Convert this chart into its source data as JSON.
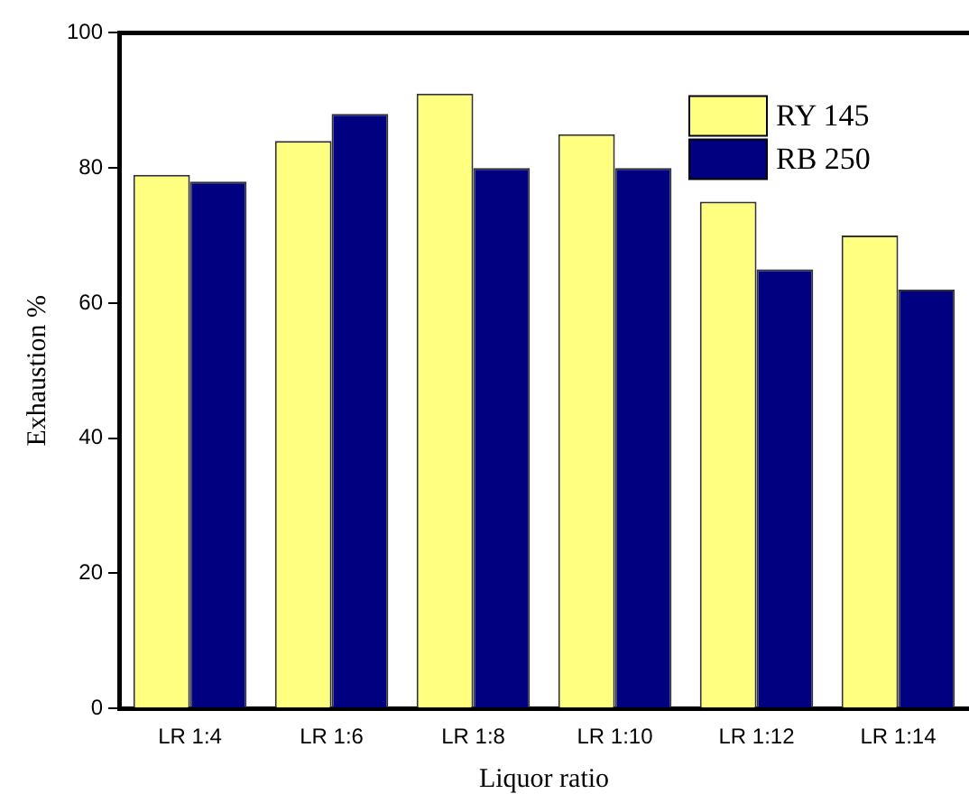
{
  "chart_data": {
    "type": "bar",
    "xlabel": "Liquor ratio",
    "ylabel": "Exhaustion %",
    "categories": [
      "LR 1:4",
      "LR 1:6",
      "LR 1:8",
      "LR 1:10",
      "LR 1:12",
      "LR 1:14"
    ],
    "series": [
      {
        "name": "RY 145",
        "color": "#ffff80",
        "values": [
          79,
          84,
          91,
          85,
          75,
          70
        ]
      },
      {
        "name": "RB 250",
        "color": "#000080",
        "values": [
          78,
          88,
          80,
          80,
          65,
          62
        ]
      }
    ],
    "ylim": [
      0,
      100
    ],
    "yticks": [
      0,
      20,
      40,
      60,
      80,
      100
    ],
    "grid": false,
    "legend": "top right"
  }
}
